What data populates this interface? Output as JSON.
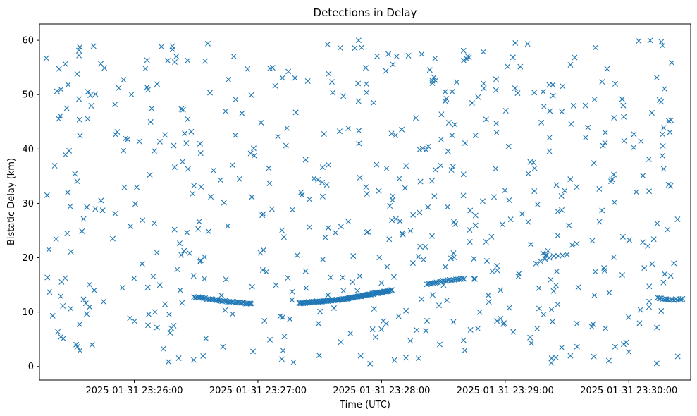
{
  "chart_data": {
    "type": "scatter",
    "title": "Detections in Delay",
    "xlabel": "Time (UTC)",
    "ylabel": "Bistatic Delay (km)",
    "marker": "x",
    "color": "#1f77b4",
    "grid": false,
    "xlim": [
      "2025-01-31 23:25:14",
      "2025-01-31 23:30:30"
    ],
    "ylim": [
      -2.5,
      63
    ],
    "x_ticks": [
      "2025-01-31 23:26:00",
      "2025-01-31 23:27:00",
      "2025-01-31 23:28:00",
      "2025-01-31 23:29:00",
      "2025-01-31 23:30:00"
    ],
    "y_ticks": [
      0,
      10,
      20,
      30,
      40,
      50,
      60
    ],
    "track_segments": [
      {
        "name": "",
        "t_start": "2025-01-31 23:26:29",
        "t_end": "2025-01-31 23:26:57",
        "count": 42,
        "curve": [
          [
            0,
            12.8
          ],
          [
            0.5,
            12.0
          ],
          [
            1,
            11.5
          ]
        ]
      },
      {
        "name": "",
        "t_start": "2025-01-31 23:27:20",
        "t_end": "2025-01-31 23:28:05",
        "count": 110,
        "curve": [
          [
            0,
            11.6
          ],
          [
            0.5,
            12.4
          ],
          [
            1,
            14.0
          ]
        ]
      },
      {
        "name": "",
        "t_start": "2025-01-31 23:28:22",
        "t_end": "2025-01-31 23:28:40",
        "count": 24,
        "curve": [
          [
            0,
            15.1
          ],
          [
            0.5,
            15.8
          ],
          [
            1,
            16.2
          ]
        ]
      },
      {
        "name": "",
        "t_start": "2025-01-31 23:29:15",
        "t_end": "2025-01-31 23:29:30",
        "count": 8,
        "curve": [
          [
            0,
            19.0
          ],
          [
            0.5,
            20.2
          ],
          [
            1,
            20.6
          ]
        ]
      },
      {
        "name": "",
        "t_start": "2025-01-31 23:30:14",
        "t_end": "2025-01-31 23:30:26",
        "count": 16,
        "curve": [
          [
            0,
            12.6
          ],
          [
            0.5,
            12.2
          ],
          [
            1,
            12.4
          ]
        ]
      }
    ],
    "clutter": {
      "count": 600,
      "t_start": "2025-01-31 23:25:17",
      "t_end": "2025-01-31 23:30:24",
      "delay_range": [
        0.5,
        60
      ]
    }
  }
}
